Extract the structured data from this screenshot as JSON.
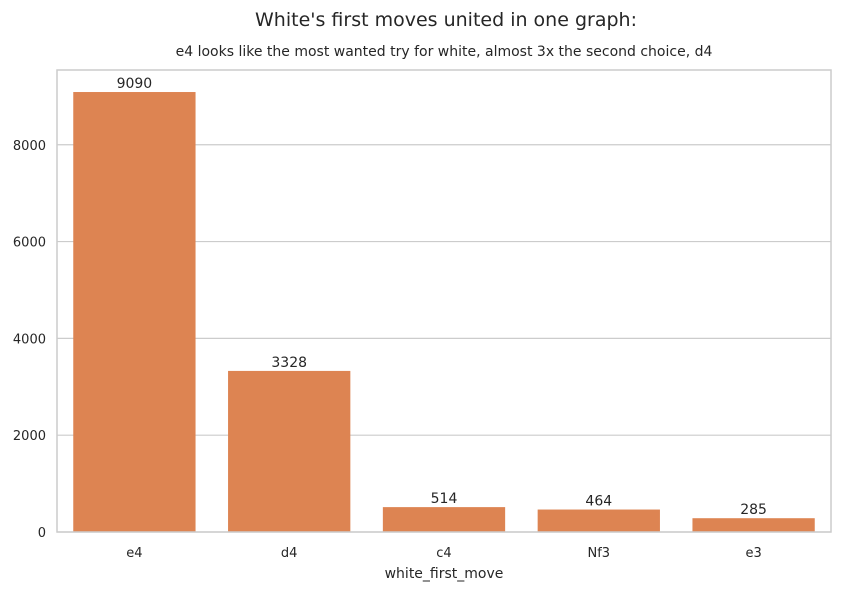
{
  "chart_data": {
    "type": "bar",
    "title": "White's first moves united in one graph:",
    "subtitle": "e4 looks like the most wanted try for white, almost 3x the second choice, d4",
    "xlabel": "white_first_move",
    "ylabel": "",
    "categories": [
      "e4",
      "d4",
      "c4",
      "Nf3",
      "e3"
    ],
    "values": [
      9090,
      3328,
      514,
      464,
      285
    ],
    "data_labels": [
      "9090",
      "3328",
      "514",
      "464",
      "285"
    ],
    "ylim": [
      0,
      9545
    ],
    "yticks": [
      0,
      2000,
      4000,
      6000,
      8000
    ],
    "ytick_labels": [
      "0",
      "2000",
      "4000",
      "6000",
      "8000"
    ],
    "grid": "horizontal",
    "legend": "none",
    "bar_color": "#dd8452",
    "grid_color": "#cccccc",
    "frame_color": "#cccccc"
  }
}
